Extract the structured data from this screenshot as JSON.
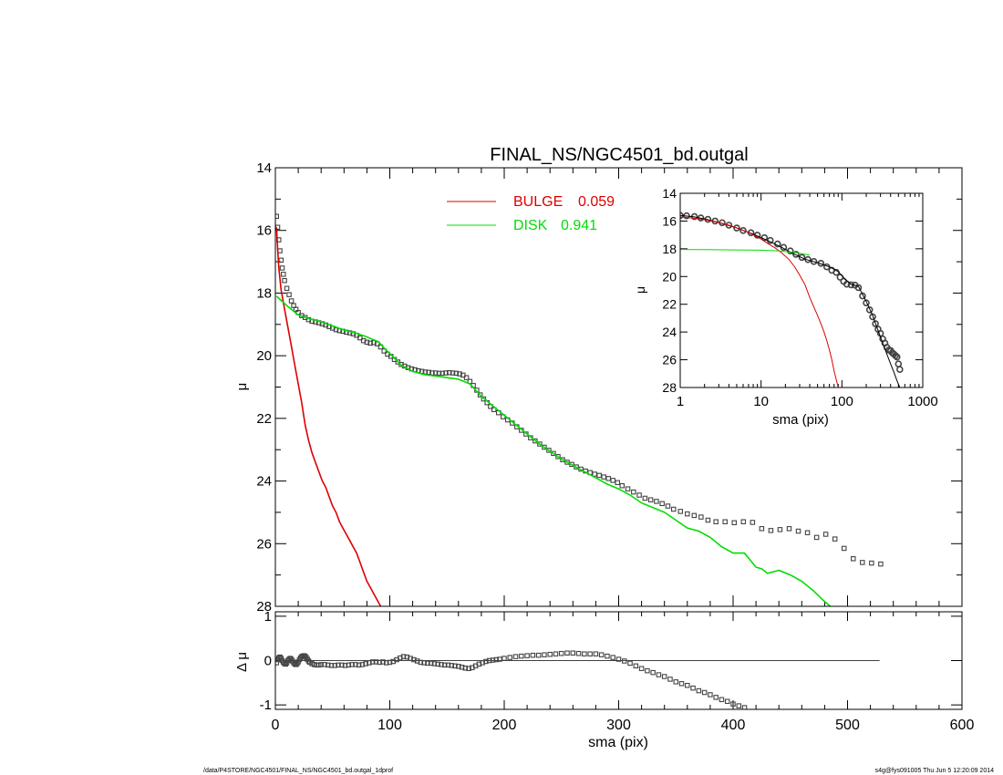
{
  "footer": {
    "left": "/data/P4STORE/NGC4501/FINAL_NS/NGC4501_bd.outgal_1dprof",
    "right": "s4g@fys091005  Thu Jun  5 12:20:09 2014"
  },
  "colors": {
    "bulge": "#dd0000",
    "disk": "#00dd00",
    "data": "#444444",
    "frame": "#000000"
  },
  "chart_data": [
    {
      "id": "main",
      "type": "scatter",
      "title": "FINAL_NS/NGC4501_bd.outgal",
      "xlabel": "",
      "ylabel": "μ",
      "xlim": [
        0,
        600
      ],
      "ylim": [
        28,
        14
      ],
      "y_inverted": true,
      "yticks": [
        14,
        16,
        18,
        20,
        22,
        24,
        26,
        28
      ],
      "legend": {
        "placement": "top-center",
        "entries": [
          {
            "name": "BULGE",
            "value": "0.059",
            "color": "#dd0000"
          },
          {
            "name": "DISK",
            "value": "0.941",
            "color": "#00dd00"
          }
        ]
      },
      "series": [
        {
          "name": "data",
          "style": "squares",
          "x": [
            1,
            2,
            3,
            4,
            5,
            6,
            7,
            8,
            10,
            12,
            14,
            16,
            18,
            20,
            23,
            26,
            29,
            32,
            35,
            38,
            41,
            44,
            47,
            50,
            53,
            56,
            59,
            62,
            65,
            68,
            71,
            74,
            77,
            80,
            83,
            86,
            89,
            92,
            95,
            98,
            101,
            104,
            107,
            110,
            113,
            116,
            119,
            122,
            125,
            128,
            131,
            134,
            137,
            140,
            143,
            146,
            149,
            152,
            155,
            158,
            161,
            164,
            167,
            170,
            173,
            176,
            179,
            182,
            185,
            188,
            191,
            195,
            199,
            203,
            207,
            211,
            215,
            219,
            223,
            227,
            231,
            235,
            239,
            243,
            247,
            251,
            255,
            259,
            263,
            267,
            271,
            275,
            279,
            283,
            287,
            291,
            295,
            299,
            303,
            308,
            313,
            318,
            323,
            328,
            333,
            338,
            343,
            348,
            354,
            360,
            366,
            372,
            378,
            385,
            393,
            401,
            409,
            417,
            425,
            433,
            441,
            449,
            457,
            465,
            473,
            481,
            489,
            497,
            505,
            513,
            521,
            529
          ],
          "y": [
            15.55,
            15.9,
            16.3,
            16.65,
            16.95,
            17.2,
            17.4,
            17.6,
            17.85,
            18.05,
            18.25,
            18.4,
            18.52,
            18.62,
            18.72,
            18.78,
            18.85,
            18.9,
            18.92,
            18.95,
            18.98,
            19.02,
            19.07,
            19.12,
            19.17,
            19.2,
            19.22,
            19.25,
            19.27,
            19.3,
            19.35,
            19.43,
            19.52,
            19.57,
            19.6,
            19.58,
            19.62,
            19.72,
            19.85,
            19.95,
            20.02,
            20.12,
            20.2,
            20.28,
            20.33,
            20.38,
            20.42,
            20.45,
            20.48,
            20.5,
            20.52,
            20.53,
            20.55,
            20.55,
            20.56,
            20.56,
            20.55,
            20.54,
            20.55,
            20.56,
            20.58,
            20.62,
            20.7,
            20.82,
            20.95,
            21.1,
            21.25,
            21.38,
            21.5,
            21.62,
            21.72,
            21.82,
            21.95,
            22.05,
            22.15,
            22.27,
            22.38,
            22.5,
            22.62,
            22.72,
            22.82,
            22.92,
            23.02,
            23.12,
            23.22,
            23.32,
            23.4,
            23.47,
            23.55,
            23.62,
            23.68,
            23.73,
            23.78,
            23.82,
            23.87,
            23.92,
            23.98,
            24.05,
            24.15,
            24.25,
            24.35,
            24.45,
            24.55,
            24.6,
            24.65,
            24.72,
            24.8,
            24.9,
            24.97,
            25.05,
            25.1,
            25.15,
            25.25,
            25.3,
            25.3,
            25.33,
            25.3,
            25.32,
            25.52,
            25.58,
            25.55,
            25.52,
            25.6,
            25.65,
            25.8,
            25.7,
            25.85,
            26.15,
            26.48,
            26.6,
            26.62,
            26.65
          ],
          "color": "#444444"
        },
        {
          "name": "BULGE",
          "style": "line",
          "x": [
            1,
            2,
            3,
            5,
            8,
            11,
            14,
            17,
            20,
            23,
            26,
            29,
            32,
            35,
            38,
            41,
            44,
            47,
            50,
            53,
            56,
            59,
            62,
            65,
            68,
            71,
            74,
            77,
            80,
            83,
            86,
            89,
            92
          ],
          "y": [
            15.9,
            16.6,
            17.2,
            17.9,
            18.5,
            19.1,
            19.7,
            20.3,
            20.9,
            21.5,
            22.2,
            22.7,
            23.1,
            23.4,
            23.7,
            24.0,
            24.2,
            24.5,
            24.8,
            25.0,
            25.3,
            25.5,
            25.7,
            25.9,
            26.1,
            26.3,
            26.6,
            26.9,
            27.2,
            27.4,
            27.6,
            27.8,
            28.0
          ],
          "color": "#dd0000"
        },
        {
          "name": "DISK",
          "style": "line",
          "x": [
            1,
            10,
            20,
            30,
            40,
            50,
            60,
            70,
            80,
            85,
            90,
            95,
            100,
            110,
            120,
            130,
            140,
            150,
            160,
            170,
            180,
            190,
            200,
            210,
            220,
            230,
            240,
            250,
            260,
            270,
            280,
            290,
            300,
            310,
            320,
            330,
            340,
            350,
            360,
            370,
            380,
            390,
            400,
            410,
            420,
            425,
            430,
            440,
            450,
            460,
            470,
            480,
            485
          ],
          "y": [
            18.1,
            18.4,
            18.7,
            18.82,
            18.92,
            19.05,
            19.18,
            19.27,
            19.4,
            19.48,
            19.55,
            19.75,
            19.93,
            20.3,
            20.5,
            20.6,
            20.65,
            20.7,
            20.75,
            20.9,
            21.3,
            21.6,
            21.9,
            22.2,
            22.5,
            22.8,
            23.05,
            23.3,
            23.5,
            23.7,
            23.9,
            24.1,
            24.25,
            24.45,
            24.7,
            24.85,
            25.0,
            25.25,
            25.5,
            25.6,
            25.8,
            26.1,
            26.3,
            26.3,
            26.75,
            26.8,
            26.95,
            26.85,
            27.0,
            27.2,
            27.5,
            27.85,
            28.0
          ],
          "color": "#00dd00"
        }
      ]
    },
    {
      "id": "residual",
      "type": "scatter",
      "xlabel": "sma (pix)",
      "ylabel": "Δ μ",
      "xlim": [
        0,
        600
      ],
      "ylim": [
        -1.1,
        1.1
      ],
      "xticks": [
        0,
        100,
        200,
        300,
        400,
        500,
        600
      ],
      "yticks": [
        1,
        0,
        -1
      ],
      "zero_line_xrange": [
        0,
        528
      ],
      "series": [
        {
          "name": "residual",
          "style": "squares",
          "x": [
            1,
            2,
            3,
            4,
            5,
            6,
            7,
            8,
            9,
            10,
            11,
            12,
            13,
            14,
            15,
            16,
            17,
            18,
            19,
            20,
            21,
            22,
            23,
            24,
            25,
            26,
            27,
            28,
            29,
            30,
            32,
            34,
            36,
            38,
            40,
            43,
            46,
            49,
            52,
            55,
            58,
            61,
            64,
            67,
            70,
            73,
            76,
            79,
            82,
            85,
            88,
            91,
            94,
            97,
            100,
            103,
            106,
            109,
            112,
            115,
            118,
            121,
            124,
            127,
            130,
            133,
            136,
            139,
            142,
            145,
            148,
            151,
            154,
            157,
            160,
            163,
            166,
            169,
            172,
            175,
            178,
            181,
            184,
            187,
            190,
            193,
            196,
            200,
            205,
            210,
            215,
            220,
            225,
            230,
            235,
            240,
            245,
            250,
            255,
            260,
            265,
            270,
            275,
            280,
            285,
            290,
            295,
            300,
            305,
            310,
            315,
            320,
            325,
            330,
            335,
            340,
            345,
            350,
            355,
            360,
            365,
            370,
            375,
            380,
            385,
            390,
            395,
            400,
            405,
            410
          ],
          "y": [
            -0.05,
            0.02,
            0.06,
            0.08,
            0.05,
            0.0,
            -0.04,
            -0.07,
            -0.08,
            -0.05,
            0.0,
            0.03,
            0.05,
            0.03,
            -0.01,
            -0.05,
            -0.08,
            -0.09,
            -0.07,
            -0.03,
            0.02,
            0.06,
            0.09,
            0.1,
            0.11,
            0.1,
            0.07,
            0.03,
            -0.01,
            -0.04,
            -0.07,
            -0.09,
            -0.1,
            -0.1,
            -0.09,
            -0.09,
            -0.1,
            -0.11,
            -0.11,
            -0.1,
            -0.1,
            -0.11,
            -0.1,
            -0.09,
            -0.09,
            -0.1,
            -0.09,
            -0.07,
            -0.05,
            -0.03,
            -0.03,
            -0.04,
            -0.03,
            -0.05,
            -0.04,
            -0.02,
            0.02,
            0.06,
            0.09,
            0.08,
            0.05,
            0.02,
            -0.01,
            -0.04,
            -0.05,
            -0.06,
            -0.06,
            -0.07,
            -0.08,
            -0.09,
            -0.1,
            -0.1,
            -0.11,
            -0.12,
            -0.13,
            -0.15,
            -0.17,
            -0.18,
            -0.16,
            -0.12,
            -0.08,
            -0.05,
            -0.02,
            0.0,
            0.01,
            0.02,
            0.03,
            0.05,
            0.07,
            0.09,
            0.1,
            0.11,
            0.12,
            0.12,
            0.13,
            0.14,
            0.15,
            0.16,
            0.17,
            0.17,
            0.16,
            0.15,
            0.15,
            0.15,
            0.13,
            0.1,
            0.07,
            0.03,
            -0.01,
            -0.06,
            -0.12,
            -0.18,
            -0.23,
            -0.27,
            -0.32,
            -0.36,
            -0.42,
            -0.48,
            -0.52,
            -0.56,
            -0.62,
            -0.68,
            -0.72,
            -0.77,
            -0.83,
            -0.88,
            -0.92,
            -0.98,
            -1.02,
            -1.06
          ],
          "color": "#444444"
        }
      ]
    },
    {
      "id": "inset",
      "type": "scatter",
      "xlabel": "sma (pix)",
      "ylabel": "μ",
      "xscale": "log",
      "xlim": [
        1,
        1000
      ],
      "ylim": [
        28,
        14
      ],
      "y_inverted": true,
      "xticks": [
        1,
        10,
        100,
        1000
      ],
      "yticks": [
        14,
        16,
        18,
        20,
        22,
        24,
        26,
        28
      ],
      "series": [
        {
          "name": "data",
          "style": "circles",
          "x": [
            1,
            1.2,
            1.5,
            1.8,
            2.2,
            2.7,
            3.3,
            4,
            5,
            6,
            7.5,
            9,
            11,
            13,
            16,
            19,
            23,
            27,
            32,
            38,
            45,
            55,
            65,
            75,
            85,
            95,
            105,
            115,
            130,
            145,
            160,
            180,
            200,
            220,
            240,
            260,
            280,
            300,
            320,
            340,
            360,
            380,
            400,
            420,
            440,
            460,
            480,
            500,
            520
          ],
          "y": [
            15.6,
            15.62,
            15.68,
            15.78,
            15.88,
            16.0,
            16.12,
            16.3,
            16.5,
            16.68,
            16.85,
            17.02,
            17.2,
            17.4,
            17.65,
            17.9,
            18.15,
            18.4,
            18.62,
            18.78,
            18.92,
            19.05,
            19.3,
            19.55,
            19.7,
            20.05,
            20.35,
            20.55,
            20.6,
            20.62,
            20.8,
            21.4,
            21.9,
            22.4,
            22.9,
            23.4,
            23.8,
            24.1,
            24.5,
            24.8,
            25.1,
            25.3,
            25.33,
            25.5,
            25.6,
            25.7,
            25.8,
            26.3,
            26.7
          ],
          "color": "#444444"
        },
        {
          "name": "model",
          "style": "line",
          "x": [
            1,
            1.5,
            2,
            3,
            5,
            8,
            12,
            18,
            25,
            35,
            50,
            70,
            90,
            110,
            130,
            160,
            200,
            240,
            280,
            320,
            360,
            400,
            440,
            480,
            520
          ],
          "y": [
            15.6,
            15.7,
            15.85,
            16.1,
            16.5,
            16.95,
            17.4,
            17.9,
            18.35,
            18.75,
            19.0,
            19.3,
            19.65,
            20.2,
            20.55,
            20.7,
            21.8,
            22.8,
            23.9,
            24.8,
            25.6,
            26.3,
            26.9,
            27.5,
            28.0
          ],
          "color": "#000000"
        },
        {
          "name": "BULGE",
          "style": "line",
          "x": [
            1,
            1.5,
            2,
            3,
            4,
            5,
            6.5,
            8,
            10,
            12,
            15,
            18,
            22,
            26,
            30,
            35,
            40,
            45,
            50,
            55,
            60,
            65,
            70,
            75,
            80,
            90
          ],
          "y": [
            15.7,
            15.8,
            15.9,
            16.1,
            16.3,
            16.5,
            16.75,
            17.0,
            17.3,
            17.6,
            17.95,
            18.3,
            18.75,
            19.3,
            19.9,
            20.6,
            21.5,
            22.2,
            22.8,
            23.4,
            24.0,
            24.6,
            25.3,
            26.0,
            26.8,
            28.0
          ],
          "color": "#dd0000"
        },
        {
          "name": "DISK",
          "style": "line",
          "x": [
            1,
            2,
            5,
            10,
            15,
            20,
            25,
            30,
            35,
            40
          ],
          "y": [
            18.05,
            18.06,
            18.08,
            18.1,
            18.14,
            18.2,
            18.26,
            18.33,
            18.4,
            18.46
          ],
          "color": "#00dd00"
        }
      ]
    }
  ]
}
